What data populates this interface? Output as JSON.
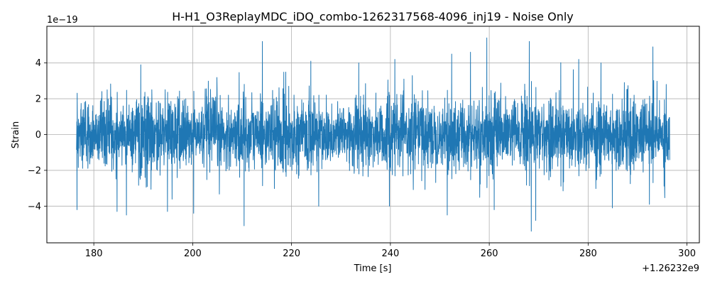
{
  "chart_data": {
    "type": "line",
    "title": "H-H1_O3ReplayMDC_iDQ_combo-1262317568-4096_inj19 - Noise Only",
    "xlabel": "Time [s]",
    "ylabel": "Strain",
    "x_offset_label": "+1.26232e9",
    "y_scale_label": "1e−19",
    "xlim": [
      170.5,
      302.5
    ],
    "ylim": [
      -6.05,
      6.05
    ],
    "x_ticks": [
      180,
      200,
      220,
      240,
      260,
      280,
      300
    ],
    "x_tick_labels": [
      "180",
      "200",
      "220",
      "240",
      "260",
      "280",
      "300"
    ],
    "y_ticks": [
      -4,
      -2,
      0,
      2,
      4
    ],
    "y_tick_labels": [
      "−4",
      "−2",
      "0",
      "2",
      "4"
    ],
    "grid": true,
    "legend": "none",
    "color": "#1f77b4",
    "series": [
      {
        "x_range": [
          176.5,
          296.5
        ],
        "typical_amplitude": 1.0,
        "envelope_max": 5.45,
        "envelope_min": -5.45,
        "peaks": [
          [
            176.6,
            -4.2
          ],
          [
            184.7,
            -4.3
          ],
          [
            186.6,
            -4.5
          ],
          [
            189.5,
            3.9
          ],
          [
            194.9,
            -4.3
          ],
          [
            200.2,
            -4.4
          ],
          [
            210.4,
            -5.1
          ],
          [
            214.1,
            5.2
          ],
          [
            223.9,
            4.1
          ],
          [
            225.5,
            -4.0
          ],
          [
            233.6,
            4.0
          ],
          [
            239.8,
            -4.0
          ],
          [
            240.9,
            4.2
          ],
          [
            251.5,
            -4.5
          ],
          [
            252.4,
            4.5
          ],
          [
            256.2,
            4.6
          ],
          [
            259.5,
            5.4
          ],
          [
            261.0,
            -4.2
          ],
          [
            268.1,
            5.2
          ],
          [
            268.5,
            -5.4
          ],
          [
            269.4,
            -4.8
          ],
          [
            278.1,
            4.2
          ],
          [
            282.6,
            4.0
          ],
          [
            284.9,
            -4.1
          ],
          [
            292.4,
            -3.9
          ],
          [
            293.1,
            4.9
          ]
        ]
      }
    ]
  }
}
